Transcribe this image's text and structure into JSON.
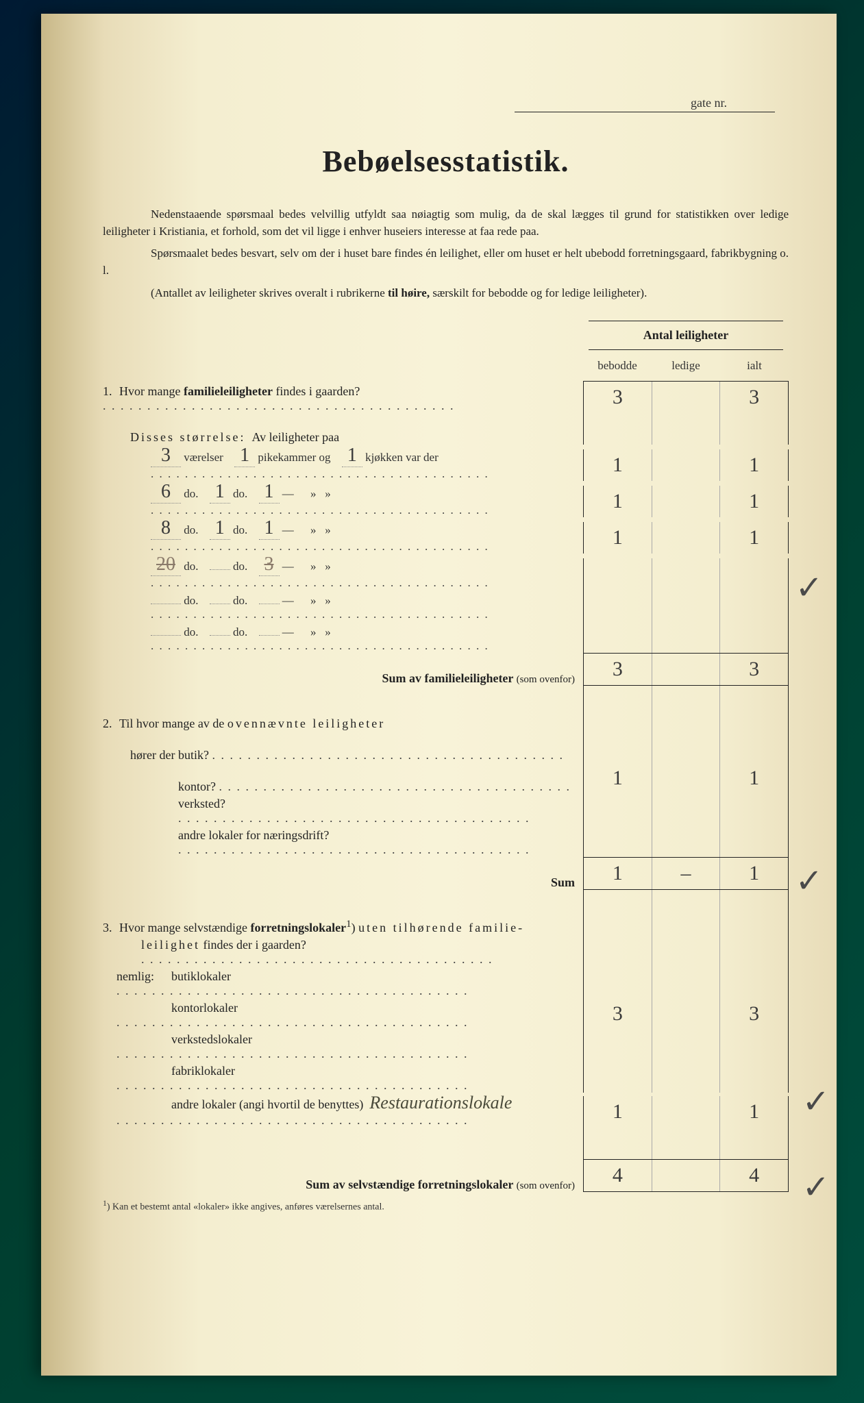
{
  "header": {
    "gate_label": "gate nr."
  },
  "title": "Bebøelsesstatistik.",
  "intro": {
    "p1a": "Nedenstaaende spørsmaal bedes velvillig utfyldt saa nøiagtig som mulig, da de skal lægges til grund for statistikken over ledige leiligheter i Kristiania, et forhold, som det vil ligge i enhver huseiers interesse at faa rede paa.",
    "p2a": "Spørsmaalet bedes besvart, selv om der i huset bare findes én leilighet, eller om huset er helt ubebodd forretningsgaard, fabrikbygning o. l.",
    "p3a": "(Antallet av leiligheter skrives overalt i rubrikerne ",
    "p3b": "til høire,",
    "p3c": " særskilt for bebodde og for ledige leiligheter)."
  },
  "columns": {
    "main": "Antal leiligheter",
    "c1": "bebodde",
    "c2": "ledige",
    "c3": "ialt"
  },
  "q1": {
    "num": "1.",
    "text": "Hvor mange ",
    "bold": "familieleiligheter",
    "text2": " findes i gaarden?",
    "bebodde": "3",
    "ledige": "",
    "ialt": "3",
    "disses": "Disses størrelse:",
    "av": "Av leiligheter paa",
    "rows": [
      {
        "v": "3",
        "vlabel": "værelser",
        "p": "1",
        "plabel": "pikekammer og",
        "k": "1",
        "klabel": "kjøkken var der",
        "b": "1",
        "l": "",
        "i": "1"
      },
      {
        "v": "6",
        "vlabel": "do.",
        "p": "1",
        "plabel": "do.",
        "k": "1",
        "klabel": "—",
        "b": "1",
        "l": "",
        "i": "1"
      },
      {
        "v": "8",
        "vlabel": "do.",
        "p": "1",
        "plabel": "do.",
        "k": "1",
        "klabel": "—",
        "b": "1",
        "l": "",
        "i": "1"
      },
      {
        "v": "20",
        "vlabel": "do.",
        "p": "",
        "plabel": "do.",
        "k": "3",
        "klabel": "—",
        "b": "",
        "l": "",
        "i": "",
        "struck": true
      },
      {
        "v": "",
        "vlabel": "do.",
        "p": "",
        "plabel": "do.",
        "k": "",
        "klabel": "—",
        "b": "",
        "l": "",
        "i": ""
      },
      {
        "v": "",
        "vlabel": "do.",
        "p": "",
        "plabel": "do.",
        "k": "",
        "klabel": "—",
        "b": "",
        "l": "",
        "i": ""
      }
    ],
    "sum_label": "Sum av familieleiligheter",
    "sum_note": "(som ovenfor)",
    "sum_b": "3",
    "sum_l": "",
    "sum_i": "3"
  },
  "q2": {
    "num": "2.",
    "line1a": "Til hvor mange av de ",
    "line1b": "ovennævnte leiligheter",
    "line2": "hører der butik?",
    "kontor": "kontor?",
    "verksted": "verksted?",
    "andre": "andre lokaler for næringsdrift?",
    "butik_b": "",
    "butik_l": "",
    "butik_i": "",
    "kontor_b": "1",
    "kontor_l": "",
    "kontor_i": "1",
    "verksted_b": "",
    "verksted_l": "",
    "verksted_i": "",
    "andre_b": "",
    "andre_l": "",
    "andre_i": "",
    "sum_label": "Sum",
    "sum_b": "1",
    "sum_l": "–",
    "sum_i": "1"
  },
  "q3": {
    "num": "3.",
    "text1": "Hvor mange selvstændige ",
    "bold": "forretningslokaler",
    "sup": "1",
    "text2": ") ",
    "text3": "uten tilhørende familie-",
    "line2": "leilighet",
    "line2b": " findes der i gaarden?",
    "nemlig": "nemlig:",
    "items": [
      {
        "label": "butiklokaler",
        "b": "",
        "l": "",
        "i": ""
      },
      {
        "label": "kontorlokaler",
        "b": "3",
        "l": "",
        "i": "3"
      },
      {
        "label": "verkstedslokaler",
        "b": "",
        "l": "",
        "i": ""
      },
      {
        "label": "fabriklokaler",
        "b": "",
        "l": "",
        "i": ""
      },
      {
        "label": "andre lokaler (angi hvortil de benyttes)",
        "hw": "Restaurationslokale",
        "b": "1",
        "l": "",
        "i": "1"
      },
      {
        "label": "",
        "b": "",
        "l": "",
        "i": ""
      }
    ],
    "sum_label": "Sum av selvstændige forretningslokaler",
    "sum_note": "(som ovenfor)",
    "sum_b": "4",
    "sum_l": "",
    "sum_i": "4"
  },
  "footnote": {
    "sup": "1",
    "text": ")  Kan et bestemt antal «lokaler» ikke angives, anføres værelsernes antal."
  }
}
